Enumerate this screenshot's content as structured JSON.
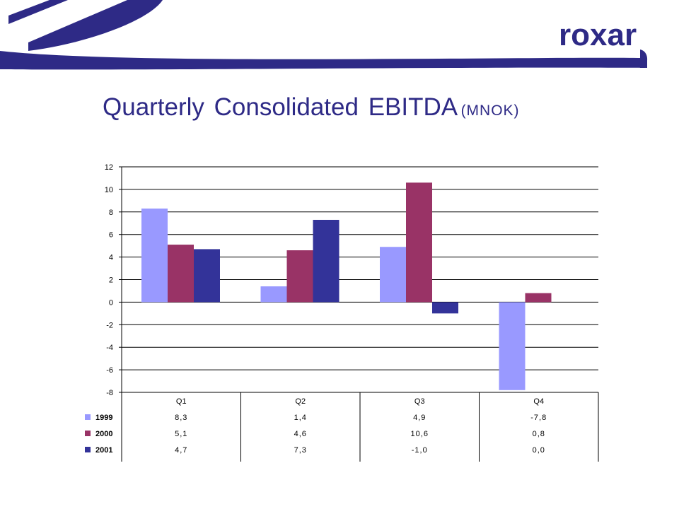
{
  "header": {
    "logo_text": "roxar",
    "title": "Quarterly Consolidated EBITDA",
    "title_unit": "(MNOK)"
  },
  "colors": {
    "brand": "#2e2a86",
    "1999": "#9999ff",
    "2000": "#993366",
    "2001": "#333399"
  },
  "chart_data": {
    "type": "bar",
    "categories": [
      "Q1",
      "Q2",
      "Q3",
      "Q4"
    ],
    "series": [
      {
        "name": "1999",
        "values": [
          8.3,
          1.4,
          4.9,
          -7.8
        ],
        "labels": [
          "8,3",
          "1,4",
          "4,9",
          "-7,8"
        ],
        "color": "#9999ff"
      },
      {
        "name": "2000",
        "values": [
          5.1,
          4.6,
          10.6,
          0.8
        ],
        "labels": [
          "5,1",
          "4,6",
          "10,6",
          "0,8"
        ],
        "color": "#993366"
      },
      {
        "name": "2001",
        "values": [
          4.7,
          7.3,
          -1.0,
          0.0
        ],
        "labels": [
          "4,7",
          "7,3",
          "-1,0",
          "0,0"
        ],
        "color": "#333399"
      }
    ],
    "ylim": [
      -8,
      12
    ],
    "yticks": [
      12,
      10,
      8,
      6,
      4,
      2,
      0,
      -2,
      -4,
      -6,
      -8
    ],
    "grid": true,
    "legend": "data table below chart"
  }
}
